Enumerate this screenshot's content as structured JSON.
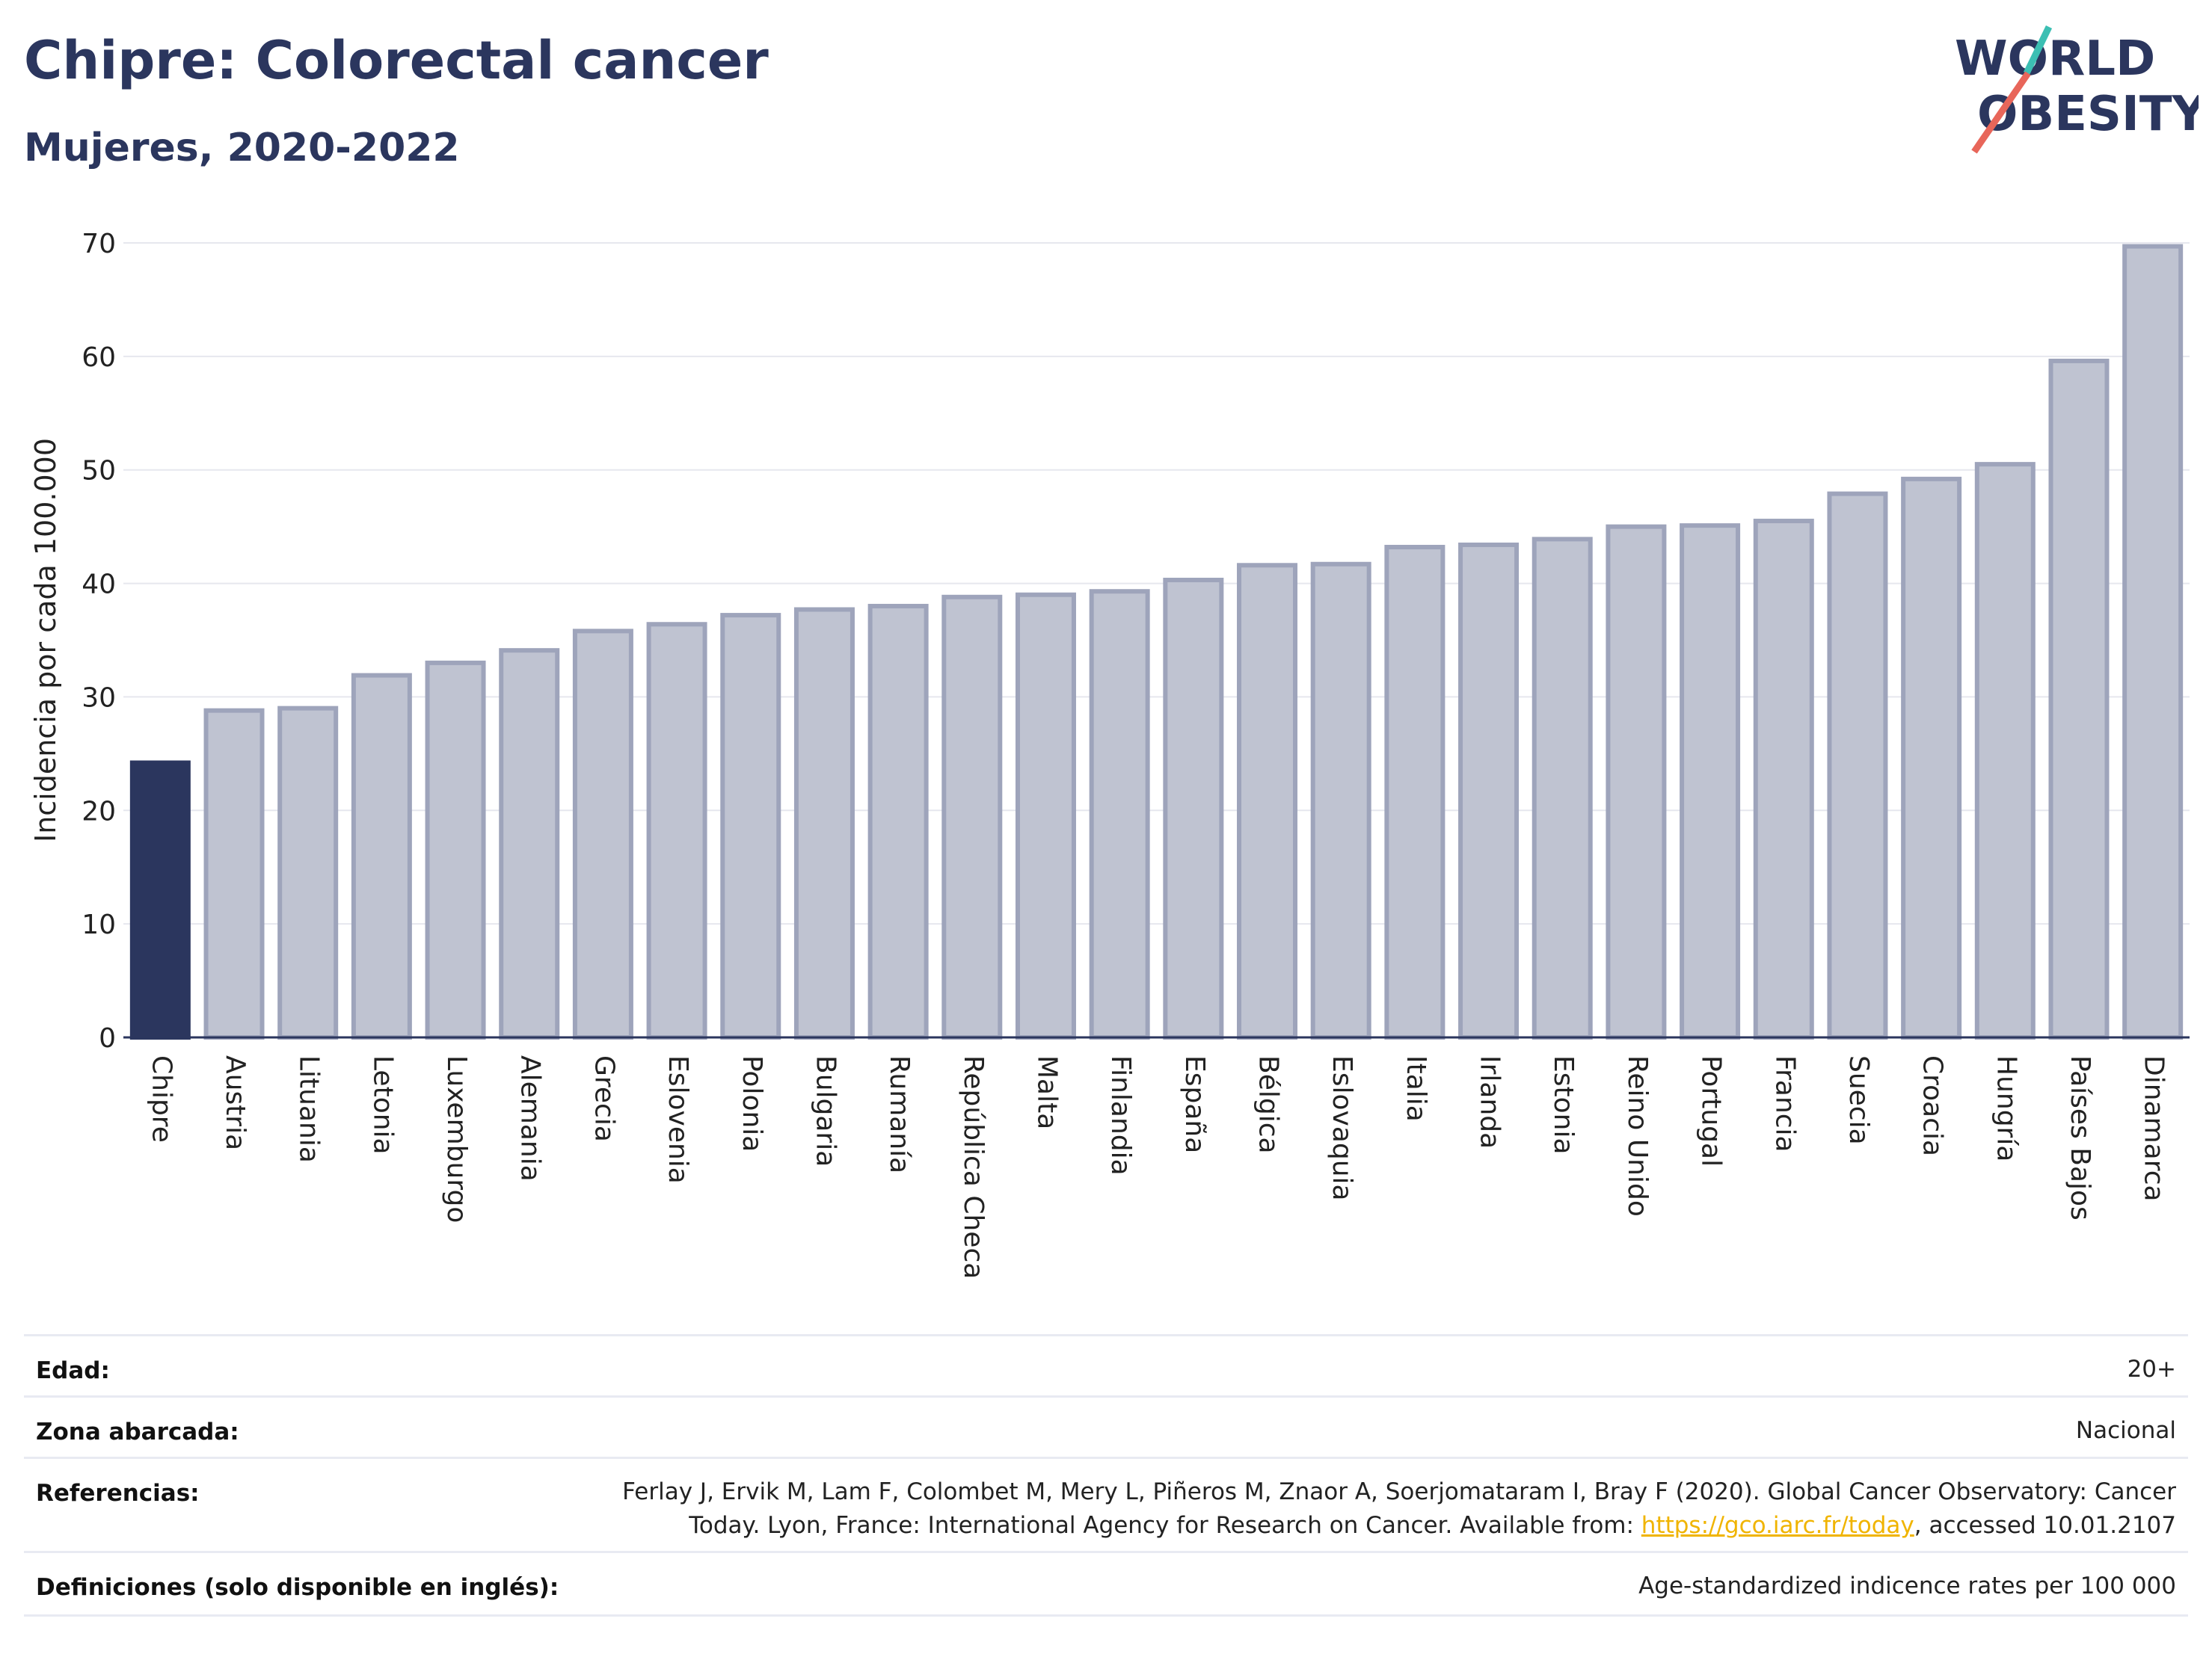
{
  "header": {
    "title": "Chipre: Colorectal cancer",
    "subtitle": "Mujeres, 2020-2022",
    "logo_line1": "WORLD",
    "logo_line2": "OBESITY"
  },
  "colors": {
    "highlight_bar": "#2b365e",
    "bar_fill": "#bfc3d1",
    "bar_stroke": "#9ea4bb",
    "grid": "#e6e7ee",
    "text": "#2b365e",
    "logo_teal": "#3cbfb3",
    "logo_red": "#e8665a",
    "link": "#f0b400"
  },
  "chart_data": {
    "type": "bar",
    "title": "Chipre: Colorectal cancer",
    "subtitle": "Mujeres, 2020-2022",
    "xlabel": "",
    "ylabel": "Incidencia por cada 100.000",
    "ylim": [
      0,
      70
    ],
    "yticks": [
      0,
      10,
      20,
      30,
      40,
      50,
      60,
      70
    ],
    "grid": true,
    "highlight": "Chipre",
    "categories": [
      "Chipre",
      "Austria",
      "Lituania",
      "Letonia",
      "Luxemburgo",
      "Alemania",
      "Grecia",
      "Eslovenia",
      "Polonia",
      "Bulgaria",
      "Rumanía",
      "República Checa",
      "Malta",
      "Finlandia",
      "España",
      "Bélgica",
      "Eslovaquia",
      "Italia",
      "Irlanda",
      "Estonia",
      "Reino Unido",
      "Portugal",
      "Francia",
      "Suecia",
      "Croacia",
      "Hungría",
      "Países Bajos",
      "Dinamarca"
    ],
    "values": [
      24.2,
      28.8,
      29.0,
      31.9,
      33.0,
      34.1,
      35.8,
      36.4,
      37.2,
      37.7,
      38.0,
      38.8,
      39.0,
      39.3,
      40.3,
      41.6,
      41.7,
      43.2,
      43.4,
      43.9,
      45.0,
      45.1,
      45.5,
      47.9,
      49.2,
      50.5,
      59.6,
      69.7
    ]
  },
  "meta": {
    "edad_label": "Edad:",
    "edad_value": "20+",
    "zona_label": "Zona abarcada:",
    "zona_value": "Nacional",
    "ref_label": "Referencias:",
    "ref_line1": "Ferlay J, Ervik M, Lam F, Colombet M, Mery L, Piñeros M, Znaor A, Soerjomataram I, Bray F (2020). Global Cancer Observatory: Cancer",
    "ref_line2_pre": "Today. Lyon, France: International Agency for Research on Cancer. Available from: ",
    "ref_link": "https://gco.iarc.fr/today",
    "ref_line2_post": ", accessed 10.01.2107",
    "def_label": "Definiciones (solo disponible en inglés):",
    "def_value": "Age-standardized indicence rates per 100 000"
  }
}
